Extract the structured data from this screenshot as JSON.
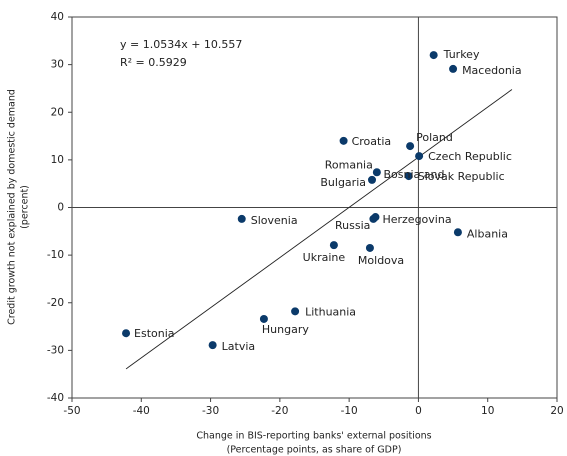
{
  "chart_data": {
    "type": "scatter",
    "equation": "y = 1.0534x + 10.557",
    "r_squared": "R² = 0.5929",
    "xlabel": [
      "Change in BIS-reporting banks' external positions",
      "(Percentage points, as share of GDP)"
    ],
    "ylabel": [
      "Credit growth not explained by domestic demand",
      "(percent)"
    ],
    "xlim": [
      -50,
      20
    ],
    "ylim": [
      -40,
      40
    ],
    "xticks": [
      -50,
      -40,
      -30,
      -20,
      -10,
      0,
      10,
      20
    ],
    "yticks": [
      -40,
      -30,
      -20,
      -10,
      0,
      10,
      20,
      30,
      40
    ],
    "color": "#0b3a6a",
    "labels": [
      "Turkey",
      "Macedonia",
      "Croatia",
      "Poland",
      "Czech Republic",
      "Romania",
      "Bulgaria",
      "Slovak Republic",
      "Slovenia",
      "Russia",
      [
        "Bosnia and",
        "Herzegovina"
      ],
      "Albania",
      "Ukraine",
      "Moldova",
      "Lithuania",
      "Hungary",
      "Estonia",
      "Latvia"
    ],
    "x": [
      2.2,
      5.0,
      -10.8,
      -1.2,
      0.1,
      -6.0,
      -6.7,
      -1.4,
      -25.5,
      -6.5,
      -6.2,
      5.7,
      -12.2,
      -7.0,
      -17.8,
      -22.3,
      -42.2,
      -29.7
    ],
    "y": [
      32.0,
      29.1,
      14.0,
      12.9,
      10.8,
      7.4,
      5.8,
      6.6,
      -2.4,
      -2.4,
      -2.0,
      -5.2,
      -7.9,
      -8.5,
      -21.8,
      -23.4,
      -26.4,
      -28.9
    ],
    "trendline": {
      "slope": 1.0534,
      "intercept": 10.557,
      "x": [
        -42.2,
        13.5
      ]
    }
  }
}
